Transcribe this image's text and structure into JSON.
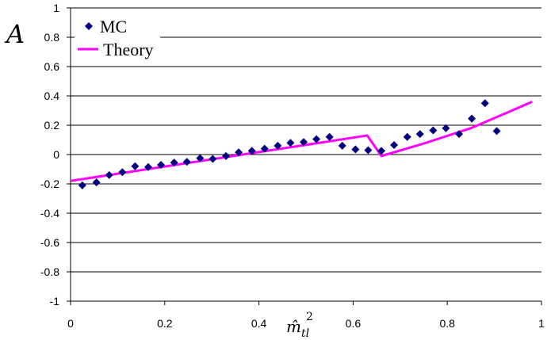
{
  "chart_data": {
    "type": "scatter",
    "ylabel": "A",
    "xlabel": "m̂",
    "xlabel_sup": "2",
    "xlabel_sub": "tl",
    "xlim": [
      0,
      1
    ],
    "ylim": [
      -1,
      1
    ],
    "xticks": [
      "0",
      "0.2",
      "0.4",
      "0.6",
      "0.8",
      "1"
    ],
    "yticks": [
      "1",
      "0.8",
      "0.6",
      "0.4",
      "0.2",
      "0",
      "-0.2",
      "-0.4",
      "-0.6",
      "-0.8",
      "-1"
    ],
    "grid": "horizontal",
    "legend_placement": "top-left",
    "series": [
      {
        "name": "MC",
        "kind": "scatter",
        "color": "#000080",
        "marker": "diamond",
        "x": [
          0.025,
          0.055,
          0.082,
          0.11,
          0.137,
          0.165,
          0.192,
          0.22,
          0.247,
          0.275,
          0.302,
          0.33,
          0.357,
          0.385,
          0.412,
          0.44,
          0.467,
          0.495,
          0.522,
          0.55,
          0.577,
          0.605,
          0.632,
          0.66,
          0.687,
          0.715,
          0.742,
          0.77,
          0.797,
          0.825,
          0.852,
          0.88,
          0.905
        ],
        "y": [
          -0.21,
          -0.19,
          -0.14,
          -0.12,
          -0.08,
          -0.085,
          -0.07,
          -0.055,
          -0.05,
          -0.025,
          -0.03,
          -0.01,
          0.015,
          0.025,
          0.04,
          0.06,
          0.08,
          0.085,
          0.105,
          0.12,
          0.06,
          0.035,
          0.03,
          0.025,
          0.065,
          0.12,
          0.14,
          0.165,
          0.18,
          0.14,
          0.245,
          0.35,
          0.16
        ]
      },
      {
        "name": "Theory",
        "kind": "line",
        "color": "#ff00ff",
        "x": [
          0.0,
          0.63,
          0.66,
          0.75,
          0.85,
          0.93,
          0.98
        ],
        "y": [
          -0.18,
          0.13,
          -0.01,
          0.075,
          0.18,
          0.29,
          0.36
        ]
      }
    ]
  }
}
